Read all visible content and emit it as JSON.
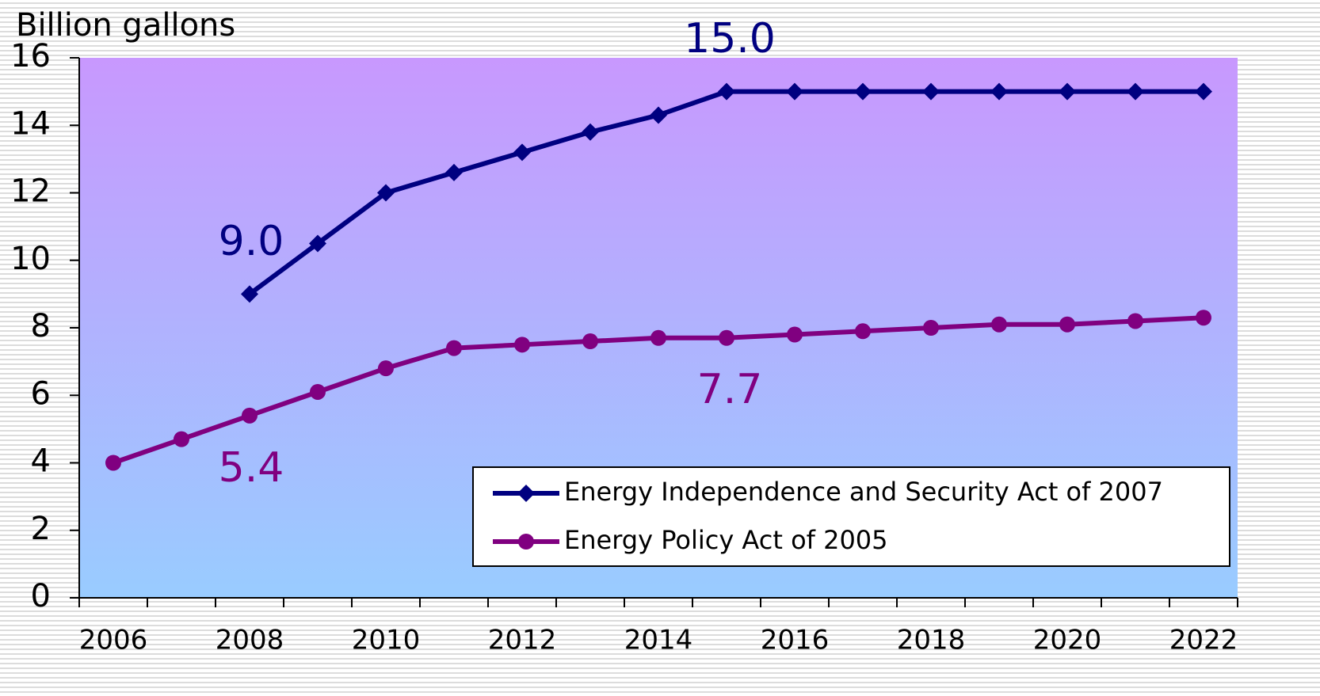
{
  "chart_data": {
    "type": "line",
    "y_axis_label": "Billion gallons",
    "categories": [
      "2006",
      null,
      "2008",
      null,
      "2010",
      null,
      "2012",
      null,
      "2014",
      null,
      "2016",
      null,
      "2018",
      null,
      "2020",
      null,
      "2022"
    ],
    "series": [
      {
        "name": "Energy Independence and Security Act of 2007",
        "color": "#000080",
        "marker": "diamond",
        "values": [
          null,
          null,
          9.0,
          10.5,
          12.0,
          12.6,
          13.2,
          13.8,
          14.3,
          15.0,
          15.0,
          15.0,
          15.0,
          15.0,
          15.0,
          15.0,
          15.0
        ]
      },
      {
        "name": "Energy Policy Act of 2005",
        "color": "#800080",
        "marker": "circle",
        "values": [
          4.0,
          4.7,
          5.4,
          6.1,
          6.8,
          7.4,
          7.5,
          7.6,
          7.7,
          7.7,
          7.8,
          7.9,
          8.0,
          8.1,
          8.1,
          8.2,
          8.3
        ]
      }
    ],
    "annotations": [
      {
        "text": "9.0",
        "color": "#000080"
      },
      {
        "text": "15.0",
        "color": "#000080"
      },
      {
        "text": "5.4",
        "color": "#800080"
      },
      {
        "text": "7.7",
        "color": "#800080"
      }
    ],
    "ylim": [
      0,
      16
    ],
    "yticks": [
      0,
      2,
      4,
      6,
      8,
      10,
      12,
      14,
      16
    ],
    "legend": "lower right"
  }
}
